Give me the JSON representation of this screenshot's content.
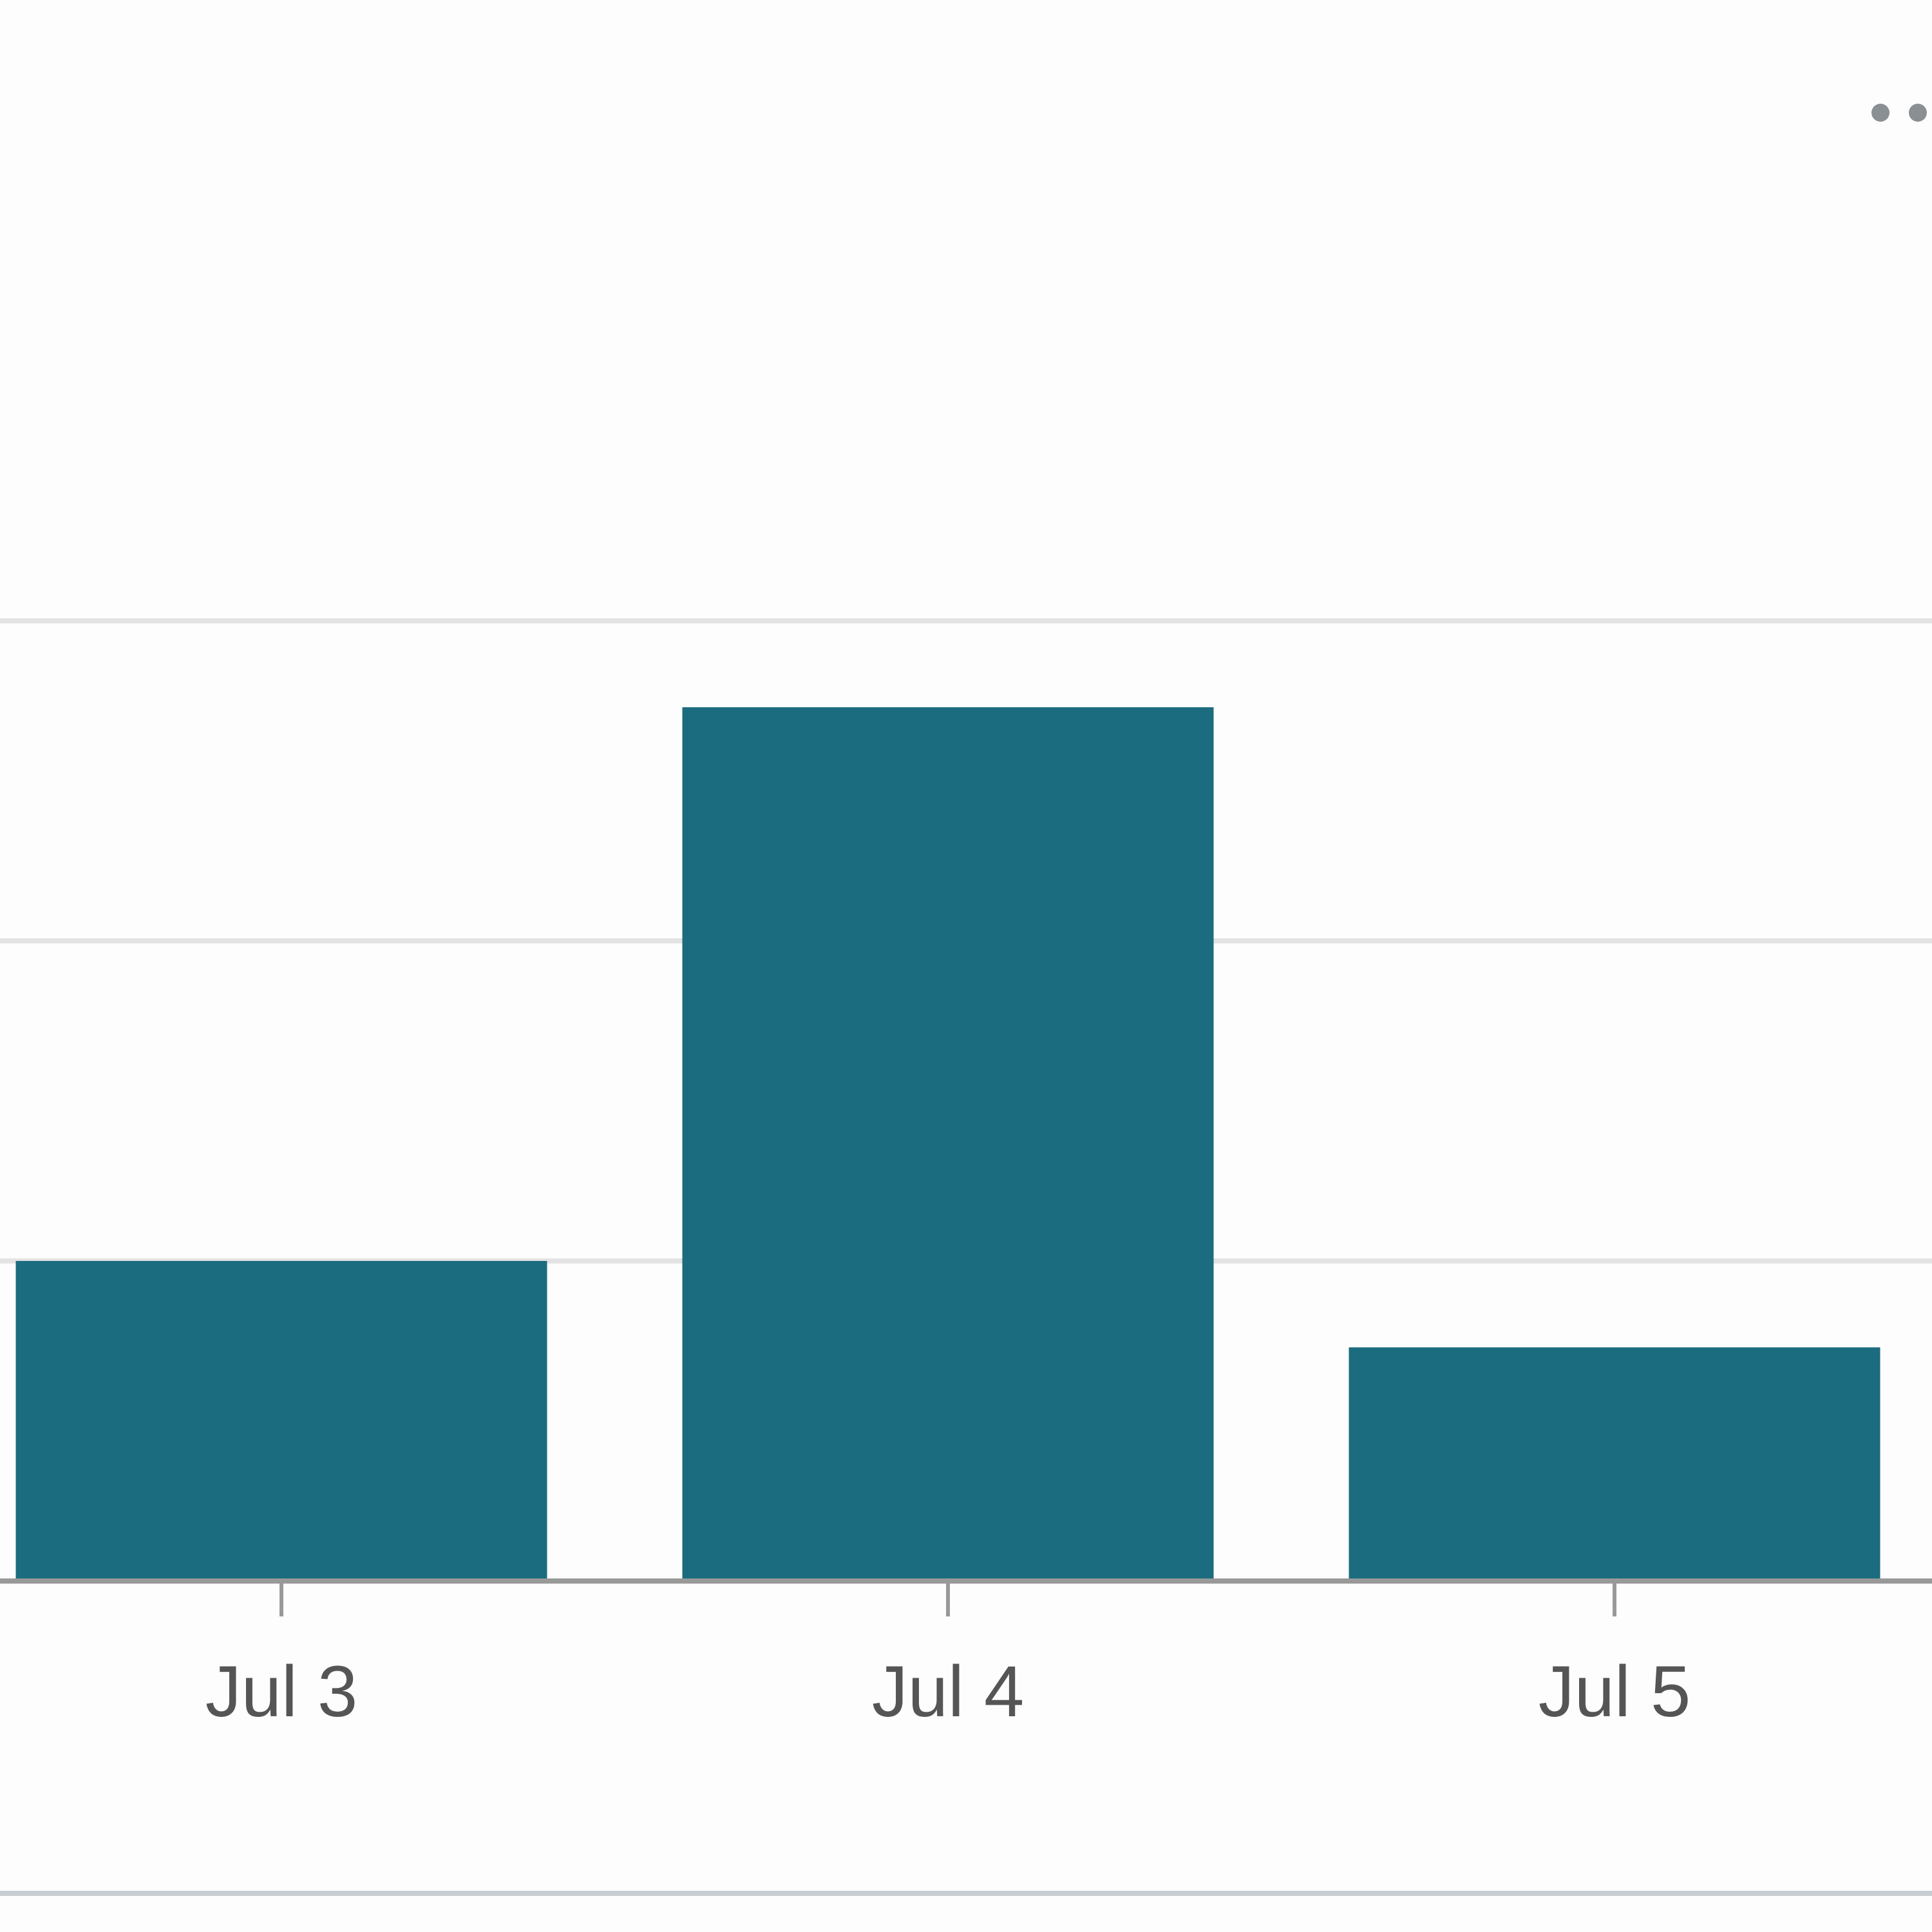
{
  "chart_data": {
    "type": "bar",
    "categories": [
      "Jul 3",
      "Jul 4",
      "Jul 5"
    ],
    "values": [
      1,
      2.73,
      0.73
    ],
    "ylim": [
      0,
      4
    ],
    "grid": true,
    "title": "",
    "xlabel": "",
    "ylabel": ""
  },
  "colors": {
    "bar": "#1b6c7e",
    "grid": "#e3e3e3",
    "axis": "#999999",
    "tick_text": "#555555"
  },
  "menu": {
    "icon": "more-dots-icon"
  }
}
